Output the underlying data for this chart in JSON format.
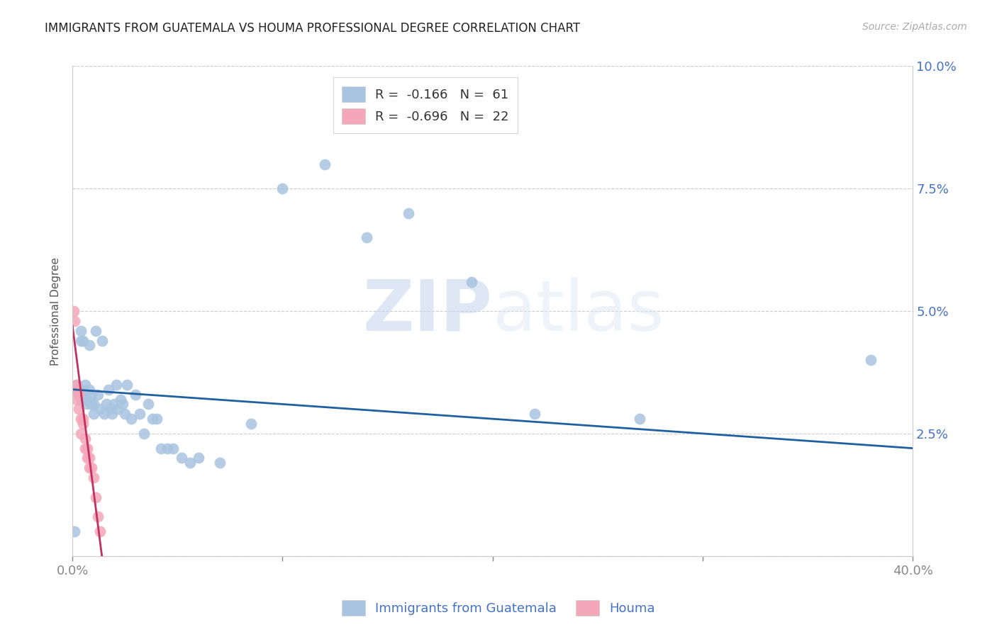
{
  "title": "IMMIGRANTS FROM GUATEMALA VS HOUMA PROFESSIONAL DEGREE CORRELATION CHART",
  "source": "Source: ZipAtlas.com",
  "ylabel": "Professional Degree",
  "xlim": [
    0.0,
    0.4
  ],
  "ylim": [
    0.0,
    0.1
  ],
  "legend1_label": "R =  -0.166   N =  61",
  "legend2_label": "R =  -0.696   N =  22",
  "legend1_series": "Immigrants from Guatemala",
  "legend2_series": "Houma",
  "blue_color": "#a8c4e0",
  "pink_color": "#f4a7b9",
  "blue_line_color": "#2060a0",
  "pink_line_color": "#c03060",
  "watermark_zip": "ZIP",
  "watermark_atlas": "atlas",
  "blue_x": [
    0.001,
    0.002,
    0.002,
    0.003,
    0.003,
    0.004,
    0.004,
    0.004,
    0.005,
    0.005,
    0.005,
    0.006,
    0.006,
    0.007,
    0.007,
    0.008,
    0.008,
    0.009,
    0.009,
    0.01,
    0.01,
    0.011,
    0.012,
    0.013,
    0.014,
    0.015,
    0.016,
    0.017,
    0.018,
    0.019,
    0.02,
    0.021,
    0.022,
    0.023,
    0.024,
    0.025,
    0.026,
    0.028,
    0.03,
    0.032,
    0.034,
    0.036,
    0.038,
    0.04,
    0.042,
    0.045,
    0.048,
    0.052,
    0.056,
    0.06,
    0.07,
    0.085,
    0.1,
    0.12,
    0.14,
    0.16,
    0.19,
    0.22,
    0.27,
    0.38,
    0.001
  ],
  "blue_y": [
    0.034,
    0.035,
    0.034,
    0.034,
    0.033,
    0.046,
    0.044,
    0.032,
    0.034,
    0.033,
    0.044,
    0.035,
    0.032,
    0.032,
    0.031,
    0.043,
    0.034,
    0.033,
    0.031,
    0.031,
    0.029,
    0.046,
    0.033,
    0.03,
    0.044,
    0.029,
    0.031,
    0.034,
    0.03,
    0.029,
    0.031,
    0.035,
    0.03,
    0.032,
    0.031,
    0.029,
    0.035,
    0.028,
    0.033,
    0.029,
    0.025,
    0.031,
    0.028,
    0.028,
    0.022,
    0.022,
    0.022,
    0.02,
    0.019,
    0.02,
    0.019,
    0.027,
    0.075,
    0.08,
    0.065,
    0.07,
    0.056,
    0.029,
    0.028,
    0.04,
    0.005
  ],
  "pink_x": [
    0.0005,
    0.001,
    0.001,
    0.002,
    0.002,
    0.003,
    0.003,
    0.004,
    0.004,
    0.005,
    0.005,
    0.006,
    0.006,
    0.007,
    0.007,
    0.008,
    0.008,
    0.009,
    0.01,
    0.011,
    0.012,
    0.013
  ],
  "pink_y": [
    0.05,
    0.048,
    0.034,
    0.035,
    0.032,
    0.033,
    0.03,
    0.028,
    0.025,
    0.028,
    0.027,
    0.024,
    0.022,
    0.022,
    0.02,
    0.02,
    0.018,
    0.018,
    0.016,
    0.012,
    0.008,
    0.005
  ],
  "blue_line_x": [
    0.0,
    0.4
  ],
  "blue_line_y": [
    0.034,
    0.022
  ],
  "pink_line_x": [
    0.0,
    0.014
  ],
  "pink_line_y": [
    0.047,
    0.0
  ]
}
